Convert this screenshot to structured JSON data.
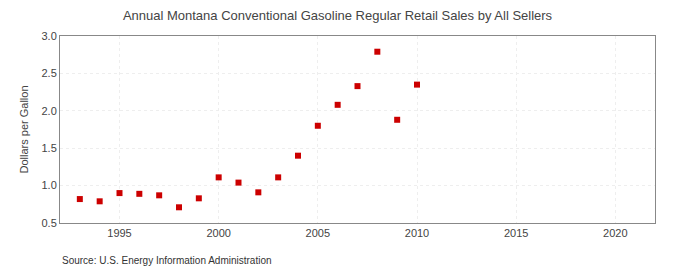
{
  "chart_data": {
    "type": "scatter",
    "title": "Annual Montana Conventional Gasoline Regular Retail Sales by All Sellers",
    "y_label": "Dollars per Gallon",
    "annotations": [
      "Source: U.S. Energy Information Administration"
    ],
    "x": [
      1993,
      1994,
      1995,
      1996,
      1997,
      1998,
      1999,
      2000,
      2001,
      2002,
      2003,
      2004,
      2005,
      2006,
      2007,
      2008,
      2009,
      2010
    ],
    "values": [
      0.82,
      0.79,
      0.9,
      0.89,
      0.87,
      0.71,
      0.83,
      1.11,
      1.04,
      0.91,
      1.11,
      1.4,
      1.8,
      2.08,
      2.33,
      2.79,
      1.88,
      2.35
    ],
    "color": "#cc0000",
    "marker": "square",
    "xlim": [
      1992,
      2022
    ],
    "ylim": [
      0.5,
      3.0
    ],
    "xticks": [
      1995,
      2000,
      2005,
      2010,
      2015,
      2020
    ],
    "yticks": [
      0.5,
      {
        "value": 1.0,
        "label": "1.0"
      },
      1.5,
      {
        "value": 2.0,
        "label": "2.0"
      },
      2.5,
      {
        "value": 3.0,
        "label": "3.0"
      }
    ],
    "grid": true
  }
}
